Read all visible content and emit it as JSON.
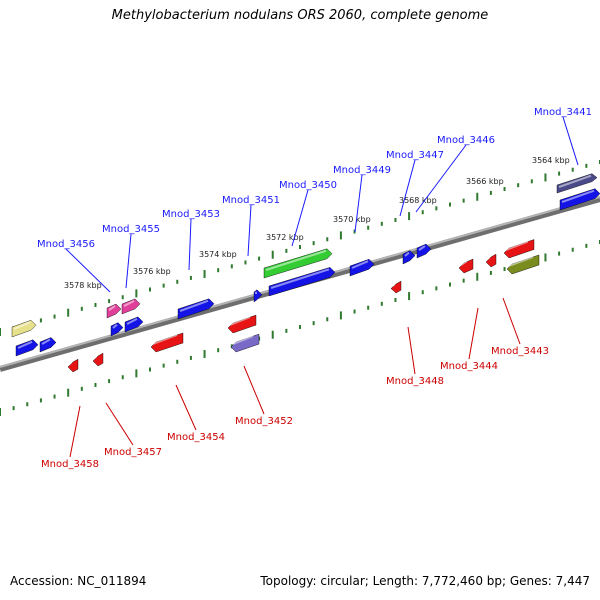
{
  "title": "Methylobacterium nodulans ORS 2060, complete genome",
  "footer": {
    "accession": "Accession: NC_011894",
    "stats": "Topology: circular; Length: 7,772,460 bp; Genes: 7,447"
  },
  "colors": {
    "backbone": "#8c8c8c",
    "tick": "#2f7a2f",
    "top_label": "#1a1aff",
    "bottom_label": "#cc0000",
    "blue_gene": "#1414e6",
    "red_gene": "#e61414",
    "green_gene": "#33cc33",
    "pink_gene": "#e0409a",
    "yellow_gene": "#e6e08a",
    "purple_gene": "#7a6ac8",
    "olive_gene": "#7a8c1e",
    "navy_gene": "#4a4a8a"
  },
  "scale_labels": [
    "3564 kbp",
    "3566 kbp",
    "3568 kbp",
    "3570 kbp",
    "3572 kbp",
    "3574 kbp",
    "3576 kbp",
    "3578 kbp"
  ],
  "top_genes": [
    "Mnod_3441",
    "Mnod_3446",
    "Mnod_3447",
    "Mnod_3449",
    "Mnod_3450",
    "Mnod_3451",
    "Mnod_3453",
    "Mnod_3455",
    "Mnod_3456"
  ],
  "bottom_genes": [
    "Mnod_3443",
    "Mnod_3444",
    "Mnod_3448",
    "Mnod_3452",
    "Mnod_3454",
    "Mnod_3457",
    "Mnod_3458"
  ]
}
